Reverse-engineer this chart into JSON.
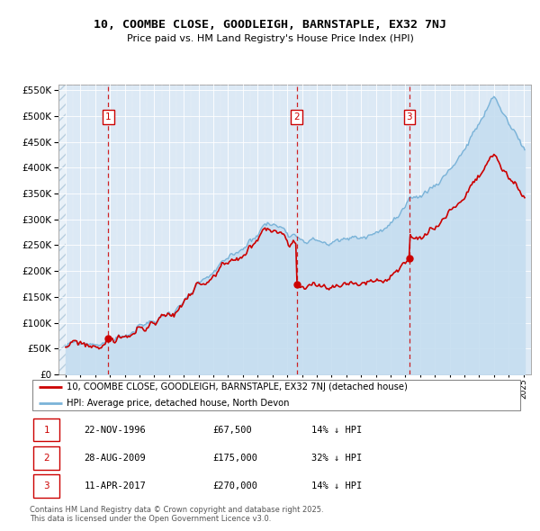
{
  "title": "10, COOMBE CLOSE, GOODLEIGH, BARNSTAPLE, EX32 7NJ",
  "subtitle": "Price paid vs. HM Land Registry's House Price Index (HPI)",
  "transactions": [
    {
      "num": 1,
      "date": "22-NOV-1996",
      "year": 1996.89,
      "price": 67500
    },
    {
      "num": 2,
      "date": "28-AUG-2009",
      "year": 2009.65,
      "price": 175000
    },
    {
      "num": 3,
      "date": "11-APR-2017",
      "year": 2017.28,
      "price": 270000
    }
  ],
  "legend_line1": "10, COOMBE CLOSE, GOODLEIGH, BARNSTAPLE, EX32 7NJ (detached house)",
  "legend_line2": "HPI: Average price, detached house, North Devon",
  "footnote1": "Contains HM Land Registry data © Crown copyright and database right 2025.",
  "footnote2": "This data is licensed under the Open Government Licence v3.0.",
  "table_rows": [
    [
      "1",
      "22-NOV-1996",
      "£67,500",
      "14% ↓ HPI"
    ],
    [
      "2",
      "28-AUG-2009",
      "£175,000",
      "32% ↓ HPI"
    ],
    [
      "3",
      "11-APR-2017",
      "£270,000",
      "14% ↓ HPI"
    ]
  ],
  "hpi_color": "#7ab3d8",
  "hpi_fill_color": "#c5ddf0",
  "price_color": "#cc0000",
  "plot_bg": "#dce9f5",
  "hatch_color": "#b8cfe0",
  "ylim": [
    0,
    560000
  ],
  "yticks": [
    0,
    50000,
    100000,
    150000,
    200000,
    250000,
    300000,
    350000,
    400000,
    450000,
    500000,
    550000
  ],
  "xlim_start": 1993.5,
  "xlim_end": 2025.5,
  "hpi_seed": 99,
  "prop_seed": 17
}
